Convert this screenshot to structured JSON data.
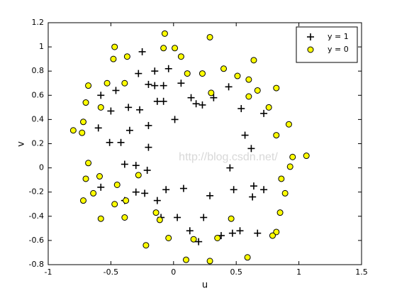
{
  "chart_data": {
    "type": "scatter",
    "xlabel": "u",
    "ylabel": "v",
    "watermark": "http://blog.csdn.net/",
    "xlim": [
      -1,
      1.5
    ],
    "xticks": [
      -1,
      -0.5,
      0,
      0.5,
      1,
      1.5
    ],
    "ylim": [
      -0.8,
      1.2
    ],
    "yticks": [
      -0.8,
      -0.6,
      -0.4,
      -0.2,
      0,
      0.2,
      0.4,
      0.6,
      0.8,
      1,
      1.2
    ],
    "grid": false,
    "legend": "top-right",
    "series": [
      {
        "name": "y = 1",
        "color": "#000000",
        "marker": "plus",
        "x": [
          -0.25,
          -0.04,
          -0.28,
          -0.15,
          -0.2,
          -0.15,
          -0.08,
          0.06,
          -0.46,
          -0.58,
          -0.13,
          -0.08,
          0.14,
          0.18,
          0.23,
          0.32,
          0.44,
          -0.36,
          -0.27,
          -0.5,
          0.54,
          0.72,
          0.01,
          -0.6,
          -0.2,
          -0.35,
          0.57,
          -0.51,
          -0.42,
          -0.2,
          0.62,
          -0.39,
          -0.3,
          -0.21,
          0.45,
          -0.58,
          0.64,
          0.08,
          -0.06,
          -0.3,
          -0.23,
          0.48,
          0.72,
          0.29,
          0.63,
          -0.39,
          -0.13,
          -0.1,
          0.03,
          0.24,
          0.13,
          0.53,
          0.47,
          0.67,
          0.38,
          0.2
        ],
        "y": [
          0.96,
          0.82,
          0.78,
          0.8,
          0.69,
          0.68,
          0.68,
          0.7,
          0.64,
          0.6,
          0.55,
          0.55,
          0.58,
          0.53,
          0.52,
          0.58,
          0.67,
          0.5,
          0.48,
          0.47,
          0.49,
          0.45,
          0.4,
          0.33,
          0.35,
          0.31,
          0.27,
          0.21,
          0.21,
          0.17,
          0.16,
          0.03,
          0.02,
          -0.02,
          0.0,
          -0.16,
          -0.15,
          -0.17,
          -0.18,
          -0.2,
          -0.21,
          -0.18,
          -0.18,
          -0.23,
          -0.24,
          -0.27,
          -0.27,
          -0.41,
          -0.41,
          -0.41,
          -0.52,
          -0.52,
          -0.54,
          -0.54,
          -0.56,
          -0.61
        ]
      },
      {
        "name": "y = 0",
        "color": "#ffff00",
        "marker": "circle",
        "x": [
          -0.07,
          0.29,
          -0.47,
          -0.08,
          0.01,
          -0.37,
          -0.48,
          0.06,
          0.64,
          0.4,
          0.11,
          0.23,
          0.51,
          -0.68,
          -0.53,
          -0.39,
          0.6,
          0.67,
          0.82,
          0.3,
          0.6,
          -0.7,
          -0.58,
          0.76,
          -0.72,
          0.92,
          -0.8,
          -0.73,
          0.82,
          1.06,
          0.95,
          -0.68,
          0.93,
          -0.59,
          -0.28,
          -0.7,
          0.86,
          -0.45,
          0.89,
          -0.64,
          -0.72,
          -0.38,
          -0.47,
          0.85,
          -0.14,
          -0.58,
          -0.39,
          0.46,
          -0.11,
          0.82,
          0.16,
          0.35,
          0.79,
          -0.04,
          -0.22,
          0.59,
          0.1,
          0.29
        ],
        "y": [
          1.11,
          1.08,
          1.0,
          0.99,
          0.99,
          0.92,
          0.9,
          0.92,
          0.89,
          0.82,
          0.78,
          0.78,
          0.76,
          0.68,
          0.7,
          0.7,
          0.73,
          0.64,
          0.66,
          0.62,
          0.59,
          0.54,
          0.5,
          0.5,
          0.38,
          0.36,
          0.31,
          0.29,
          0.27,
          0.1,
          0.09,
          0.04,
          0.01,
          -0.07,
          -0.06,
          -0.09,
          -0.09,
          -0.14,
          -0.21,
          -0.21,
          -0.27,
          -0.27,
          -0.3,
          -0.37,
          -0.37,
          -0.42,
          -0.41,
          -0.42,
          -0.43,
          -0.53,
          -0.59,
          -0.58,
          -0.56,
          -0.58,
          -0.64,
          -0.74,
          -0.76,
          -0.77
        ]
      }
    ]
  }
}
